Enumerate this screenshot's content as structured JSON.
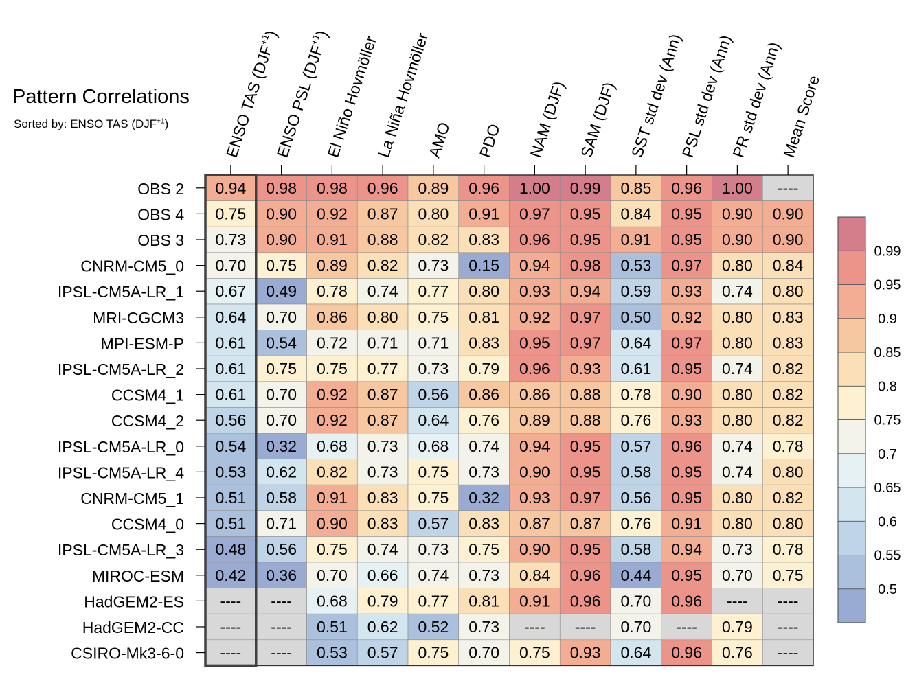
{
  "chart_data": {
    "type": "heatmap",
    "title": "Pattern Correlations",
    "subtitle_prefix": "Sorted by: ENSO TAS (DJF",
    "subtitle_sup": "+1",
    "subtitle_suffix": ")",
    "columns": [
      {
        "label": "ENSO TAS (DJF",
        "sup": "+1",
        "after": ")"
      },
      {
        "label": "ENSO PSL (DJF",
        "sup": "+1",
        "after": ")"
      },
      {
        "label": "El Niño Hovmöller",
        "sup": "",
        "after": ""
      },
      {
        "label": "La Niña Hovmöller",
        "sup": "",
        "after": ""
      },
      {
        "label": "AMO",
        "sup": "",
        "after": ""
      },
      {
        "label": "PDO",
        "sup": "",
        "after": ""
      },
      {
        "label": "NAM (DJF)",
        "sup": "",
        "after": ""
      },
      {
        "label": "SAM (DJF)",
        "sup": "",
        "after": ""
      },
      {
        "label": "SST std dev (Ann)",
        "sup": "",
        "after": ""
      },
      {
        "label": "PSL std dev (Ann)",
        "sup": "",
        "after": ""
      },
      {
        "label": "PR std dev (Ann)",
        "sup": "",
        "after": ""
      },
      {
        "label": "Mean Score",
        "sup": "",
        "after": ""
      }
    ],
    "rows": [
      "OBS 2",
      "OBS 4",
      "OBS 3",
      "CNRM-CM5_0",
      "IPSL-CM5A-LR_1",
      "MRI-CGCM3",
      "MPI-ESM-P",
      "IPSL-CM5A-LR_2",
      "CCSM4_1",
      "CCSM4_2",
      "IPSL-CM5A-LR_0",
      "IPSL-CM5A-LR_4",
      "CNRM-CM5_1",
      "CCSM4_0",
      "IPSL-CM5A-LR_3",
      "MIROC-ESM",
      "HadGEM2-ES",
      "HadGEM2-CC",
      "CSIRO-Mk3-6-0"
    ],
    "values": [
      [
        0.94,
        0.98,
        0.98,
        0.96,
        0.89,
        0.96,
        1.0,
        0.99,
        0.85,
        0.96,
        1.0,
        null
      ],
      [
        0.75,
        0.9,
        0.92,
        0.87,
        0.8,
        0.91,
        0.97,
        0.95,
        0.84,
        0.95,
        0.9,
        0.9
      ],
      [
        0.73,
        0.9,
        0.91,
        0.88,
        0.82,
        0.83,
        0.96,
        0.95,
        0.91,
        0.95,
        0.9,
        0.9
      ],
      [
        0.7,
        0.75,
        0.89,
        0.82,
        0.73,
        0.15,
        0.94,
        0.98,
        0.53,
        0.97,
        0.8,
        0.84
      ],
      [
        0.67,
        0.49,
        0.78,
        0.74,
        0.77,
        0.8,
        0.93,
        0.94,
        0.59,
        0.93,
        0.74,
        0.8
      ],
      [
        0.64,
        0.7,
        0.86,
        0.8,
        0.75,
        0.81,
        0.92,
        0.97,
        0.5,
        0.92,
        0.8,
        0.83
      ],
      [
        0.61,
        0.54,
        0.72,
        0.71,
        0.71,
        0.83,
        0.95,
        0.97,
        0.64,
        0.97,
        0.8,
        0.83
      ],
      [
        0.61,
        0.75,
        0.75,
        0.77,
        0.73,
        0.79,
        0.96,
        0.93,
        0.61,
        0.95,
        0.74,
        0.82
      ],
      [
        0.61,
        0.7,
        0.92,
        0.87,
        0.56,
        0.86,
        0.86,
        0.88,
        0.78,
        0.9,
        0.8,
        0.82
      ],
      [
        0.56,
        0.7,
        0.92,
        0.87,
        0.64,
        0.76,
        0.89,
        0.88,
        0.76,
        0.93,
        0.8,
        0.82
      ],
      [
        0.54,
        0.32,
        0.68,
        0.73,
        0.68,
        0.74,
        0.94,
        0.95,
        0.57,
        0.96,
        0.74,
        0.78
      ],
      [
        0.53,
        0.62,
        0.82,
        0.73,
        0.75,
        0.73,
        0.9,
        0.95,
        0.58,
        0.95,
        0.74,
        0.8
      ],
      [
        0.51,
        0.58,
        0.91,
        0.83,
        0.75,
        0.32,
        0.93,
        0.97,
        0.56,
        0.95,
        0.8,
        0.82
      ],
      [
        0.51,
        0.71,
        0.9,
        0.83,
        0.57,
        0.83,
        0.87,
        0.87,
        0.76,
        0.91,
        0.8,
        0.8
      ],
      [
        0.48,
        0.56,
        0.75,
        0.74,
        0.73,
        0.75,
        0.9,
        0.95,
        0.58,
        0.94,
        0.73,
        0.78
      ],
      [
        0.42,
        0.36,
        0.7,
        0.66,
        0.74,
        0.73,
        0.84,
        0.96,
        0.44,
        0.95,
        0.7,
        0.75
      ],
      [
        null,
        null,
        0.68,
        0.79,
        0.77,
        0.81,
        0.91,
        0.96,
        0.7,
        0.96,
        null,
        null
      ],
      [
        null,
        null,
        0.51,
        0.62,
        0.52,
        0.73,
        null,
        null,
        0.7,
        null,
        0.79,
        null
      ],
      [
        null,
        null,
        0.53,
        0.57,
        0.75,
        0.7,
        0.75,
        0.93,
        0.64,
        0.96,
        0.76,
        null
      ]
    ],
    "missing_label": "----",
    "highlighted_column": 0,
    "colorbar": {
      "tick_labels": [
        "0.5",
        "0.55",
        "0.6",
        "0.65",
        "0.7",
        "0.75",
        "0.8",
        "0.85",
        "0.9",
        "0.95",
        "0.99"
      ],
      "bin_colors": [
        "#9aabd3",
        "#abc0dc",
        "#bfd4e6",
        "#d3e5ee",
        "#e6f1f4",
        "#f3f3ea",
        "#fdf1d2",
        "#fbdfb6",
        "#f7c79f",
        "#f2ad92",
        "#ec948a",
        "#d47d8b"
      ]
    },
    "missing_color": "#d8d8d8",
    "highlight_color": "#404040"
  }
}
